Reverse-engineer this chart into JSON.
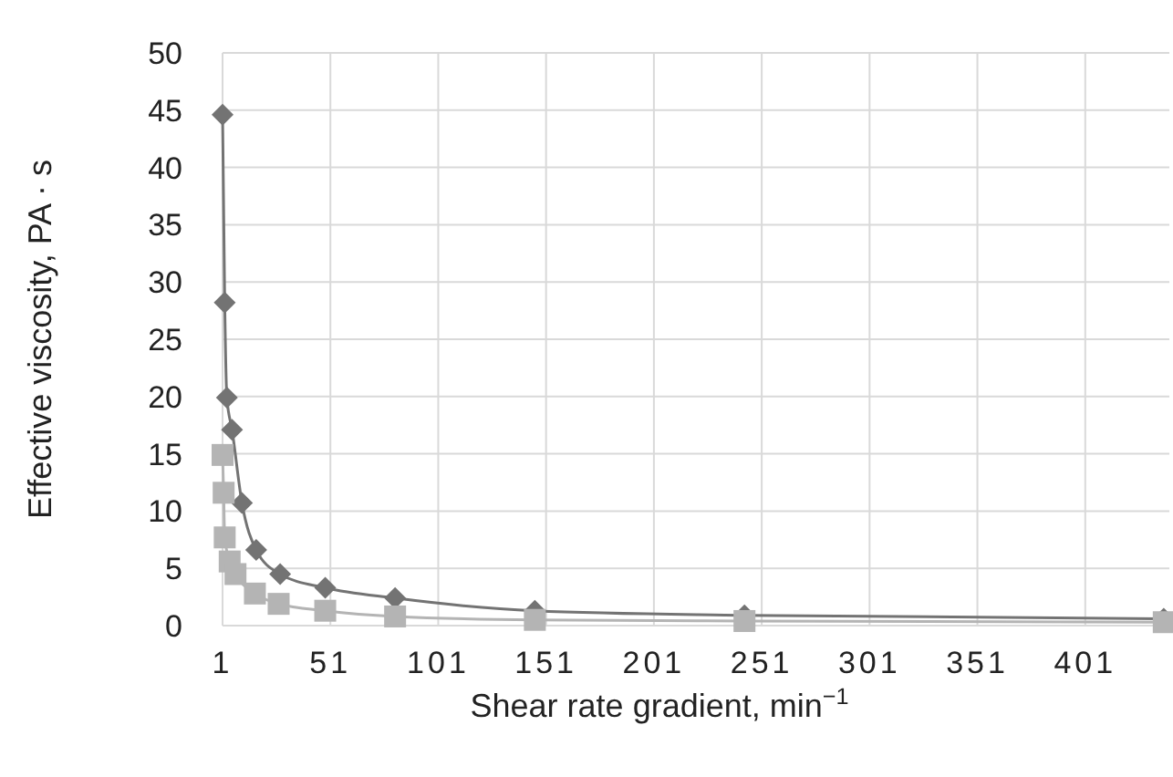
{
  "chart_data": {
    "type": "line",
    "xlabel": "Shear rate gradient, min$^{−1}$",
    "ylabel": "Effective viscosity, PA · s",
    "xlim": [
      1,
      440
    ],
    "xticks": [
      1,
      51,
      101,
      151,
      201,
      251,
      301,
      351,
      401
    ],
    "ylim": [
      0,
      50
    ],
    "yticks": [
      0,
      5,
      10,
      15,
      20,
      25,
      30,
      35,
      40,
      45,
      50
    ],
    "grid": true,
    "line_style": "solid",
    "series": [
      {
        "color": "#737373",
        "marker": "diamond",
        "x": [
          1,
          2,
          3,
          5.4,
          10,
          16.6,
          27.7,
          48.6,
          81,
          145.8,
          243,
          437.4
        ],
        "values": [
          44.6,
          28.2,
          19.9,
          17.1,
          10.7,
          6.6,
          4.5,
          3.3,
          2.4,
          1.3,
          0.9,
          0.6
        ]
      },
      {
        "color": "#b4b4b4",
        "marker": "square",
        "x": [
          1,
          1.5,
          2,
          4.3,
          7,
          16,
          27,
          48.6,
          81,
          145.8,
          243,
          437.4
        ],
        "values": [
          14.9,
          11.6,
          7.7,
          5.6,
          4.5,
          2.8,
          1.9,
          1.3,
          0.8,
          0.5,
          0.4,
          0.3
        ]
      }
    ]
  }
}
